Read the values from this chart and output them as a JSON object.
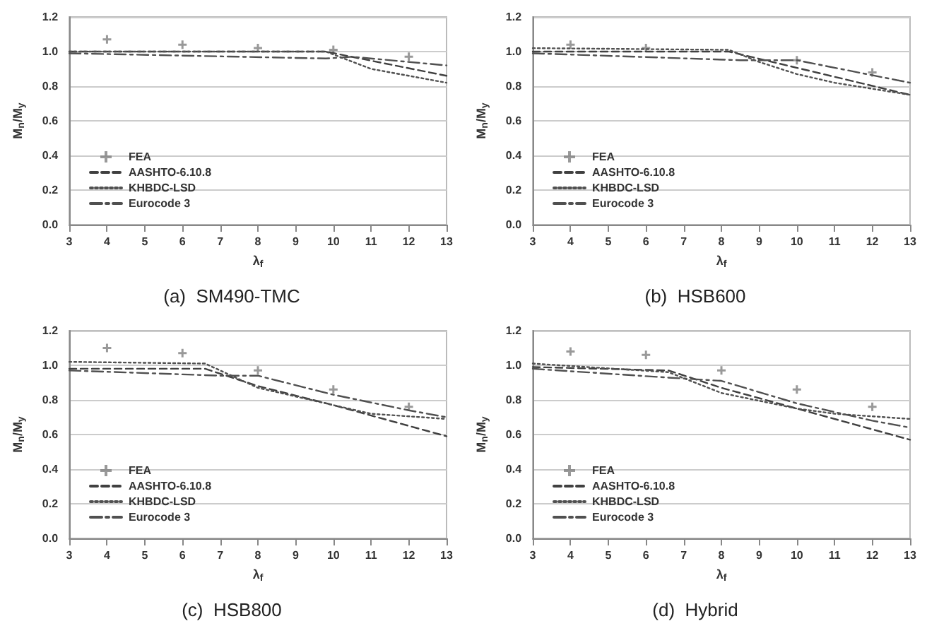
{
  "chart_data": [
    {
      "type": "line",
      "title": "(a)  SM490-TMC",
      "xlabel": "λ$_{f}$",
      "ylabel": "M$_{n}$/M$_{y}$",
      "xlim": [
        3,
        13
      ],
      "xticks": [
        3,
        4,
        5,
        6,
        7,
        8,
        9,
        10,
        11,
        12,
        13
      ],
      "ylim": [
        0,
        1.2
      ],
      "yticks": [
        {
          "value": 0,
          "label": "0.0"
        },
        {
          "value": 0.2,
          "label": "0.2"
        },
        {
          "value": 0.4,
          "label": "0.4"
        },
        {
          "value": 0.6,
          "label": "0.6"
        },
        {
          "value": 0.8,
          "label": "0.8"
        },
        {
          "value": 1,
          "label": "1.0"
        },
        {
          "value": 1.2,
          "label": "1.2"
        }
      ],
      "grid": "y",
      "legend": "bottom left",
      "series": [
        {
          "name": "FEA",
          "type": "scatter",
          "marker": "cross",
          "color": "#808080",
          "x": [
            4,
            6,
            8,
            10,
            12
          ],
          "values": [
            1.07,
            1.04,
            1.02,
            1.01,
            0.97
          ]
        },
        {
          "name": "AASHTO-6.10.8",
          "type": "line",
          "line_style": "dashed",
          "color": "#404040",
          "x": [
            3,
            9.8,
            13
          ],
          "values": [
            1.0,
            1.0,
            0.86
          ]
        },
        {
          "name": "KHBDC-LSD",
          "type": "line",
          "line_style": "dotted",
          "color": "#505050",
          "x": [
            3,
            9.8,
            11,
            13
          ],
          "values": [
            1.0,
            1.0,
            0.9,
            0.82
          ]
        },
        {
          "name": "Eurocode 3",
          "type": "line",
          "line_style": "dashdot",
          "color": "#505050",
          "x": [
            3,
            9.8,
            10.5,
            13
          ],
          "values": [
            0.99,
            0.96,
            0.97,
            0.92
          ]
        }
      ]
    },
    {
      "type": "line",
      "title": "(b)  HSB600",
      "xlabel": "λ$_{f}$",
      "ylabel": "M$_{n}$/M$_{y}$",
      "xlim": [
        3,
        13
      ],
      "xticks": [
        3,
        4,
        5,
        6,
        7,
        8,
        9,
        10,
        11,
        12,
        13
      ],
      "ylim": [
        0,
        1.2
      ],
      "yticks": [
        {
          "value": 0,
          "label": "0.0"
        },
        {
          "value": 0.2,
          "label": "0.2"
        },
        {
          "value": 0.4,
          "label": "0.4"
        },
        {
          "value": 0.6,
          "label": "0.6"
        },
        {
          "value": 0.8,
          "label": "0.8"
        },
        {
          "value": 1,
          "label": "1.0"
        },
        {
          "value": 1.2,
          "label": "1.2"
        }
      ],
      "grid": "y",
      "legend": "bottom left",
      "series": [
        {
          "name": "FEA",
          "type": "scatter",
          "marker": "cross",
          "color": "#808080",
          "x": [
            4,
            6,
            10,
            12
          ],
          "values": [
            1.04,
            1.02,
            0.95,
            0.88
          ]
        },
        {
          "name": "AASHTO-6.10.8",
          "type": "line",
          "line_style": "dashed",
          "color": "#404040",
          "x": [
            3,
            8.2,
            13
          ],
          "values": [
            1.0,
            1.0,
            0.75
          ]
        },
        {
          "name": "KHBDC-LSD",
          "type": "line",
          "line_style": "dotted",
          "color": "#505050",
          "x": [
            3,
            8.2,
            9,
            10,
            11,
            13
          ],
          "values": [
            1.02,
            1.01,
            0.94,
            0.87,
            0.82,
            0.75
          ]
        },
        {
          "name": "Eurocode 3",
          "type": "line",
          "line_style": "dashdot",
          "color": "#505050",
          "x": [
            3,
            8.5,
            10,
            13
          ],
          "values": [
            0.99,
            0.95,
            0.95,
            0.82
          ]
        }
      ]
    },
    {
      "type": "line",
      "title": "(c)  HSB800",
      "xlabel": "λ$_{f}$",
      "ylabel": "M$_{n}$/M$_{y}$",
      "xlim": [
        3,
        13
      ],
      "xticks": [
        3,
        4,
        5,
        6,
        7,
        8,
        9,
        10,
        11,
        12,
        13
      ],
      "ylim": [
        0,
        1.2
      ],
      "yticks": [
        {
          "value": 0,
          "label": "0.0"
        },
        {
          "value": 0.2,
          "label": "0.2"
        },
        {
          "value": 0.4,
          "label": "0.4"
        },
        {
          "value": 0.6,
          "label": "0.6"
        },
        {
          "value": 0.8,
          "label": "0.8"
        },
        {
          "value": 1,
          "label": "1.0"
        },
        {
          "value": 1.2,
          "label": "1.2"
        }
      ],
      "grid": "y",
      "legend": "bottom left",
      "series": [
        {
          "name": "FEA",
          "type": "scatter",
          "marker": "cross",
          "color": "#808080",
          "x": [
            4,
            6,
            8,
            10,
            12
          ],
          "values": [
            1.1,
            1.07,
            0.97,
            0.86,
            0.76
          ]
        },
        {
          "name": "AASHTO-6.10.8",
          "type": "line",
          "line_style": "dashed",
          "color": "#404040",
          "x": [
            3,
            6.6,
            8,
            10,
            12,
            13
          ],
          "values": [
            0.98,
            0.98,
            0.88,
            0.77,
            0.65,
            0.59
          ]
        },
        {
          "name": "KHBDC-LSD",
          "type": "line",
          "line_style": "dotted",
          "color": "#505050",
          "x": [
            3,
            6.6,
            8,
            10,
            11,
            13
          ],
          "values": [
            1.02,
            1.01,
            0.87,
            0.77,
            0.72,
            0.69
          ]
        },
        {
          "name": "Eurocode 3",
          "type": "line",
          "line_style": "dashdot",
          "color": "#505050",
          "x": [
            3,
            7,
            8,
            10,
            12,
            13
          ],
          "values": [
            0.97,
            0.94,
            0.94,
            0.83,
            0.74,
            0.7
          ]
        }
      ]
    },
    {
      "type": "line",
      "title": "(d)  Hybrid",
      "xlabel": "λ$_{f}$",
      "ylabel": "M$_{n}$/M$_{y}$",
      "xlim": [
        3,
        13
      ],
      "xticks": [
        3,
        4,
        5,
        6,
        7,
        8,
        9,
        10,
        11,
        12,
        13
      ],
      "ylim": [
        0,
        1.2
      ],
      "yticks": [
        {
          "value": 0,
          "label": "0.0"
        },
        {
          "value": 0.2,
          "label": "0.2"
        },
        {
          "value": 0.4,
          "label": "0.4"
        },
        {
          "value": 0.6,
          "label": "0.6"
        },
        {
          "value": 0.8,
          "label": "0.8"
        },
        {
          "value": 1,
          "label": "1.0"
        },
        {
          "value": 1.2,
          "label": "1.2"
        }
      ],
      "grid": "y",
      "legend": "bottom left",
      "series": [
        {
          "name": "FEA",
          "type": "scatter",
          "marker": "cross",
          "color": "#808080",
          "x": [
            4,
            6,
            8,
            10,
            12
          ],
          "values": [
            1.08,
            1.06,
            0.97,
            0.86,
            0.76
          ]
        },
        {
          "name": "AASHTO-6.10.8",
          "type": "line",
          "line_style": "dashed",
          "color": "#404040",
          "x": [
            3,
            6.6,
            8,
            10,
            12,
            13
          ],
          "values": [
            0.99,
            0.97,
            0.87,
            0.75,
            0.63,
            0.57
          ]
        },
        {
          "name": "KHBDC-LSD",
          "type": "line",
          "line_style": "dotted",
          "color": "#505050",
          "x": [
            3,
            6.6,
            8,
            10,
            11,
            13
          ],
          "values": [
            1.01,
            0.96,
            0.84,
            0.75,
            0.72,
            0.69
          ]
        },
        {
          "name": "Eurocode 3",
          "type": "line",
          "line_style": "dashdot",
          "color": "#505050",
          "x": [
            3,
            6.5,
            8,
            10,
            12,
            13
          ],
          "values": [
            0.98,
            0.93,
            0.91,
            0.78,
            0.68,
            0.64
          ]
        }
      ]
    }
  ]
}
